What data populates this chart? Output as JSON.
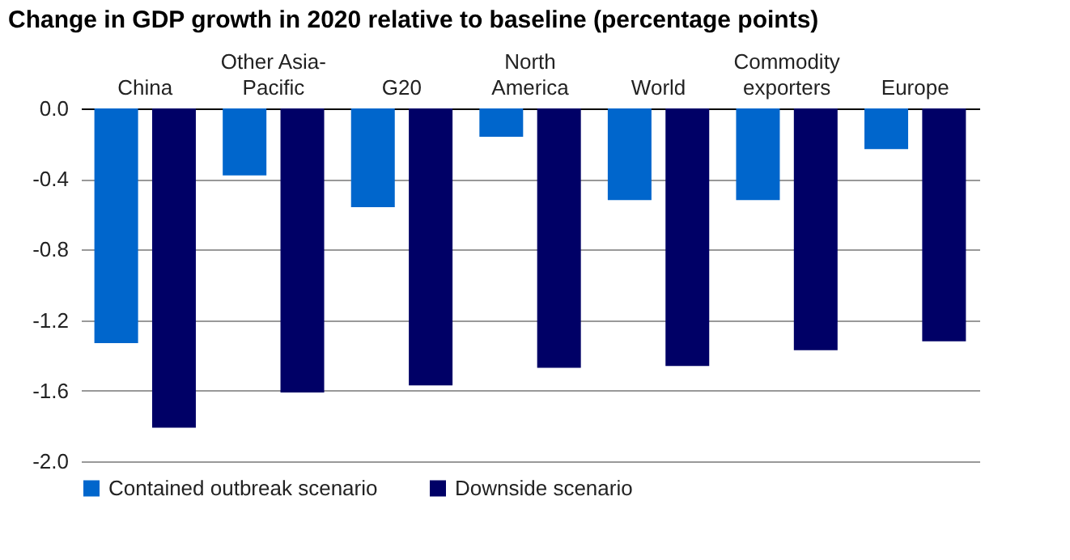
{
  "chart_data": {
    "type": "bar",
    "title": "Change in GDP growth in 2020 relative to baseline (percentage points)",
    "categories": [
      "China",
      "Other Asia-\nPacific",
      "G20",
      "North\nAmerica",
      "World",
      "Commodity\nexporters",
      "Europe"
    ],
    "series": [
      {
        "name": "Contained outbreak scenario",
        "color": "#0066cc",
        "values": [
          -1.33,
          -0.38,
          -0.56,
          -0.16,
          -0.52,
          -0.52,
          -0.23
        ]
      },
      {
        "name": "Downside scenario",
        "color": "#000066",
        "values": [
          -1.81,
          -1.61,
          -1.57,
          -1.47,
          -1.46,
          -1.37,
          -1.32
        ]
      }
    ],
    "ylim": [
      -2.0,
      0.0
    ],
    "yticks": [
      {
        "value": -2.0,
        "label": "-2.0"
      },
      {
        "value": -1.6,
        "label": "-1.6"
      },
      {
        "value": -1.2,
        "label": "-1.2"
      },
      {
        "value": -0.8,
        "label": "-0.8"
      },
      {
        "value": -0.4,
        "label": "-0.4"
      },
      {
        "value": 0.0,
        "label": "0.0"
      }
    ],
    "grid": "y",
    "legend": "bottom"
  }
}
